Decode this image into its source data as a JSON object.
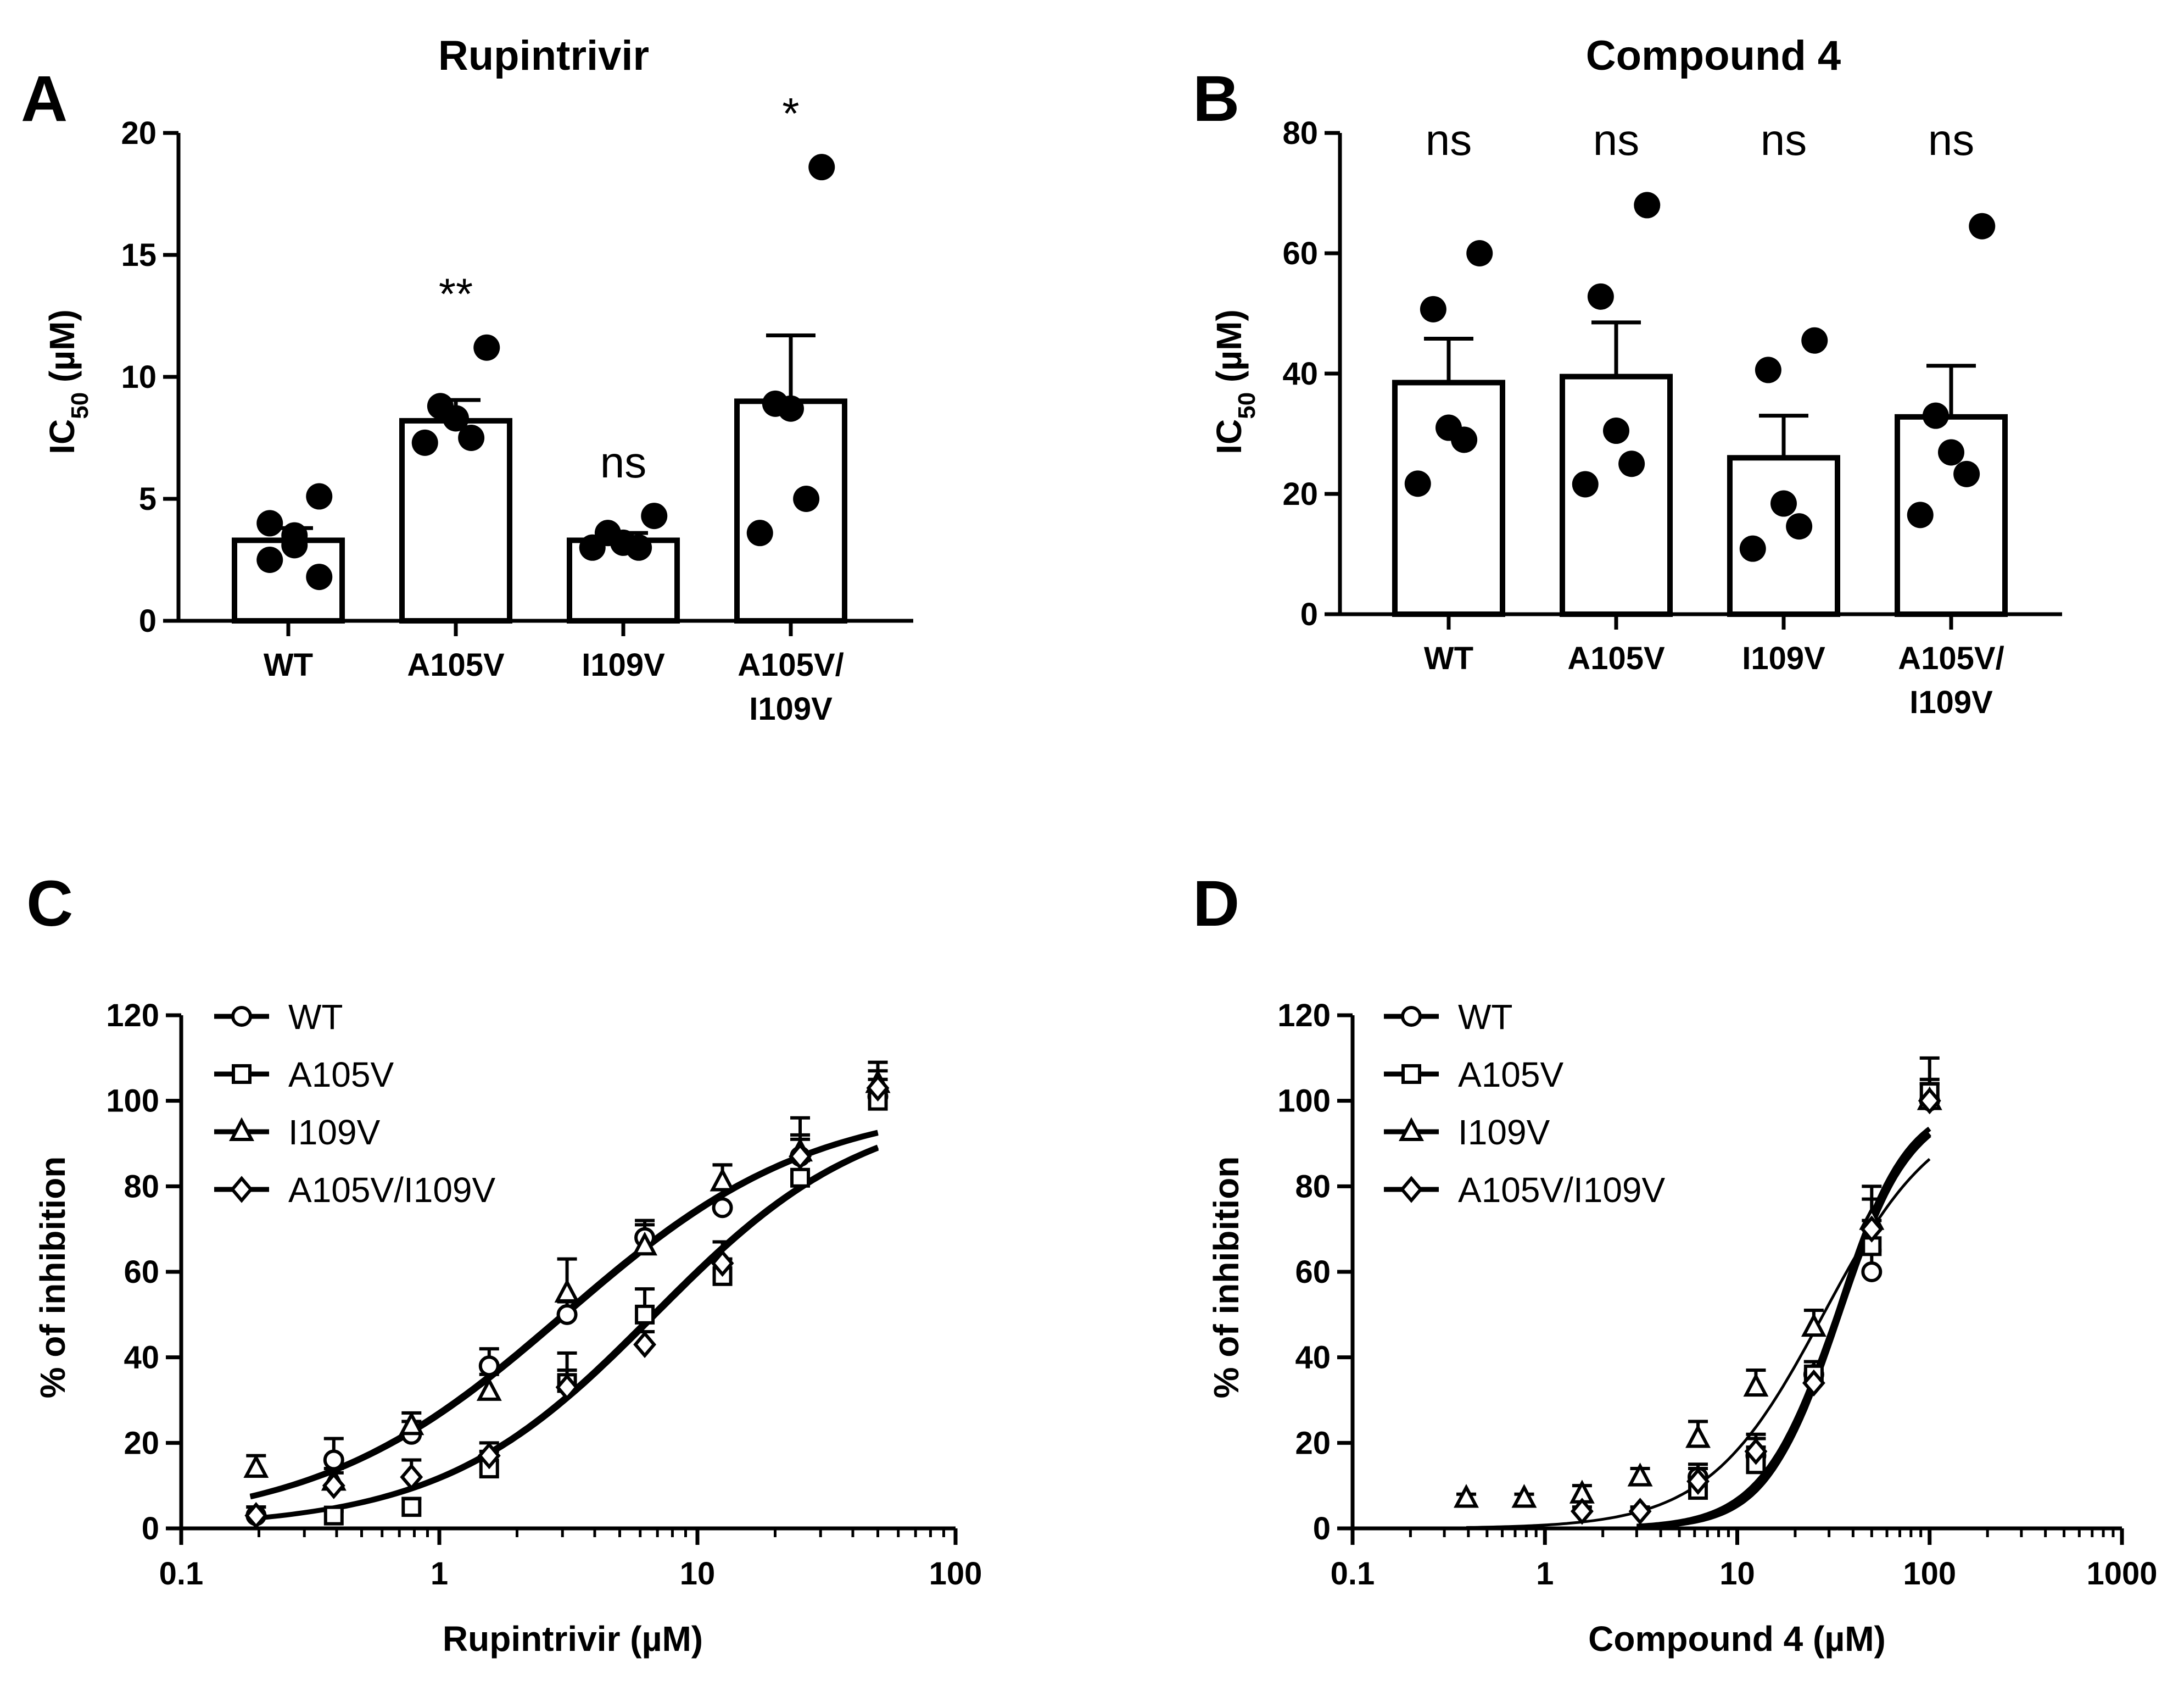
{
  "figure": {
    "panels": [
      {
        "letter": "A",
        "title": "Rupintrivir",
        "ylabel_main": "IC",
        "ylabel_sub": "50",
        "ylabel_units": " (µM)"
      },
      {
        "letter": "B",
        "title": "Compound 4",
        "ylabel_main": "IC",
        "ylabel_sub": "50",
        "ylabel_units": " (µM)"
      },
      {
        "letter": "C",
        "xlabel": "Rupintrivir (µM)",
        "ylabel": "% of inhibition"
      },
      {
        "letter": "D",
        "xlabel": "Compound 4 (µM)",
        "ylabel": "% of inhibition"
      }
    ]
  },
  "chart_data": [
    {
      "type": "bar",
      "title": "Rupintrivir",
      "ylabel": "IC50 (µM)",
      "ylim": [
        0,
        20
      ],
      "yticks": [
        "0",
        "5",
        "10",
        "15",
        "20"
      ],
      "categories": [
        [
          "WT"
        ],
        [
          "A105V"
        ],
        [
          "I109V"
        ],
        [
          "A105V/",
          "I109V"
        ]
      ],
      "means": [
        3.3,
        8.2,
        3.3,
        9.0
      ],
      "sem": [
        0.5,
        0.85,
        0.3,
        2.7
      ],
      "points": [
        [
          5.1,
          4.0,
          3.5,
          3.1,
          2.5,
          1.8
        ],
        [
          11.2,
          8.8,
          8.3,
          7.5,
          7.3
        ],
        [
          4.3,
          3.6,
          3.2,
          3.0,
          3.0
        ],
        [
          18.6,
          8.9,
          8.7,
          5.0,
          3.6
        ]
      ],
      "significance": [
        "",
        "**",
        "ns",
        "*"
      ]
    },
    {
      "type": "bar",
      "title": "Compound 4",
      "ylabel": "IC50 (µM)",
      "ylim": [
        0,
        80
      ],
      "yticks": [
        "0",
        "20",
        "40",
        "60",
        "80"
      ],
      "categories": [
        [
          "WT"
        ],
        [
          "A105V"
        ],
        [
          "I109V"
        ],
        [
          "A105V/",
          "I109V"
        ]
      ],
      "means": [
        38.5,
        39.5,
        26.0,
        32.8
      ],
      "sem": [
        7.3,
        9.0,
        7.0,
        8.5
      ],
      "points": [
        [
          60.0,
          50.7,
          31.0,
          29.0,
          21.7
        ],
        [
          68.0,
          52.8,
          30.5,
          25.0,
          21.6
        ],
        [
          45.5,
          40.6,
          18.4,
          14.6,
          10.9
        ],
        [
          64.5,
          33.0,
          26.9,
          23.3,
          16.5
        ]
      ],
      "significance": [
        "ns",
        "ns",
        "ns",
        "ns"
      ]
    },
    {
      "type": "scatter",
      "xscale": "log",
      "xlabel": "Rupintrivir (µM)",
      "ylabel": "% of inhibition",
      "xlim": [
        0.1,
        100
      ],
      "ylim": [
        0,
        120
      ],
      "xticks": [
        0.1,
        1,
        10,
        100
      ],
      "xtick_labels": [
        "0.1",
        "1",
        "10",
        "100"
      ],
      "yticks": [
        "0",
        "20",
        "40",
        "60",
        "80",
        "100",
        "120"
      ],
      "legend_position": "top-left",
      "series": [
        {
          "name": "WT",
          "marker": "circle",
          "x": [
            0.195,
            0.39,
            0.78,
            1.56,
            3.125,
            6.25,
            12.5,
            25,
            50
          ],
          "y": [
            3,
            16,
            22,
            38,
            50,
            68,
            75,
            87,
            101
          ],
          "err": [
            2,
            5,
            3,
            4,
            3,
            4,
            10,
            5,
            4
          ],
          "fit": {
            "ic50": 3.1,
            "hill": 0.9
          }
        },
        {
          "name": "A105V",
          "marker": "square",
          "x": [
            0.39,
            0.78,
            1.56,
            3.125,
            6.25,
            12.5,
            25,
            50
          ],
          "y": [
            3,
            5,
            14,
            34,
            50,
            59,
            82,
            100
          ],
          "err": [
            1,
            2,
            4,
            7,
            6,
            4,
            4,
            3
          ],
          "fit": {
            "ic50": 6.9,
            "hill": 1.05
          }
        },
        {
          "name": "I109V",
          "marker": "triangle",
          "x": [
            0.195,
            0.39,
            0.78,
            1.56,
            3.125,
            6.25,
            12.5,
            25,
            50
          ],
          "y": [
            14,
            11,
            24,
            32,
            55,
            66,
            81,
            88,
            104
          ],
          "err": [
            3,
            3,
            3,
            4,
            8,
            5,
            4,
            8,
            5
          ],
          "fit": {
            "ic50": 3.0,
            "hill": 0.9
          }
        },
        {
          "name": "A105V/I109V",
          "marker": "diamond",
          "x": [
            0.195,
            0.39,
            0.78,
            1.56,
            3.125,
            6.25,
            12.5,
            25,
            50
          ],
          "y": [
            3,
            10,
            12,
            17,
            33,
            43,
            62,
            87,
            103
          ],
          "err": [
            2,
            3,
            4,
            3,
            4,
            3,
            5,
            4,
            4
          ],
          "fit": {
            "ic50": 6.7,
            "hill": 1.05
          }
        }
      ]
    },
    {
      "type": "scatter",
      "xscale": "log",
      "xlabel": "Compound 4 (µM)",
      "ylabel": "% of inhibition",
      "xlim": [
        0.1,
        1000
      ],
      "ylim": [
        0,
        120
      ],
      "xticks": [
        0.1,
        1,
        10,
        100,
        1000
      ],
      "xtick_labels": [
        "0.1",
        "1",
        "10",
        "100",
        "1000"
      ],
      "yticks": [
        "0",
        "20",
        "40",
        "60",
        "80",
        "100",
        "120"
      ],
      "legend_position": "top-left",
      "series": [
        {
          "name": "WT",
          "marker": "circle",
          "x": [
            6.25,
            12.5,
            25,
            50,
            100
          ],
          "y": [
            12,
            17,
            36,
            60,
            100
          ],
          "err": [
            3,
            4,
            3,
            5,
            4
          ],
          "fit": {
            "ic50": 34,
            "hill": 2.3,
            "xmin": 3
          }
        },
        {
          "name": "A105V",
          "marker": "square",
          "x": [
            6.25,
            12.5,
            25,
            50,
            100
          ],
          "y": [
            9,
            15,
            36,
            66,
            102
          ],
          "err": [
            3,
            4,
            3,
            6,
            8
          ],
          "fit": {
            "ic50": 33,
            "hill": 2.4,
            "xmin": 3
          }
        },
        {
          "name": "I109V",
          "marker": "triangle",
          "x": [
            0.39,
            0.78,
            1.56,
            3.125,
            6.25,
            12.5,
            25,
            50,
            100
          ],
          "y": [
            7,
            7,
            8,
            12,
            21,
            33,
            47,
            72,
            100
          ],
          "err": [
            1,
            1,
            2,
            2,
            4,
            4,
            4,
            8,
            4
          ],
          "fit": {
            "ic50": 28,
            "hill": 1.45,
            "xmin": 0.39
          }
        },
        {
          "name": "A105V/I109V",
          "marker": "diamond",
          "x": [
            1.56,
            3.125,
            6.25,
            12.5,
            25,
            50,
            100
          ],
          "y": [
            4,
            4,
            11,
            18,
            34,
            70,
            100
          ],
          "err": [
            1,
            1,
            3,
            4,
            3,
            7,
            5
          ],
          "fit": {
            "ic50": 33,
            "hill": 2.2,
            "xmin": 3
          }
        }
      ]
    }
  ]
}
